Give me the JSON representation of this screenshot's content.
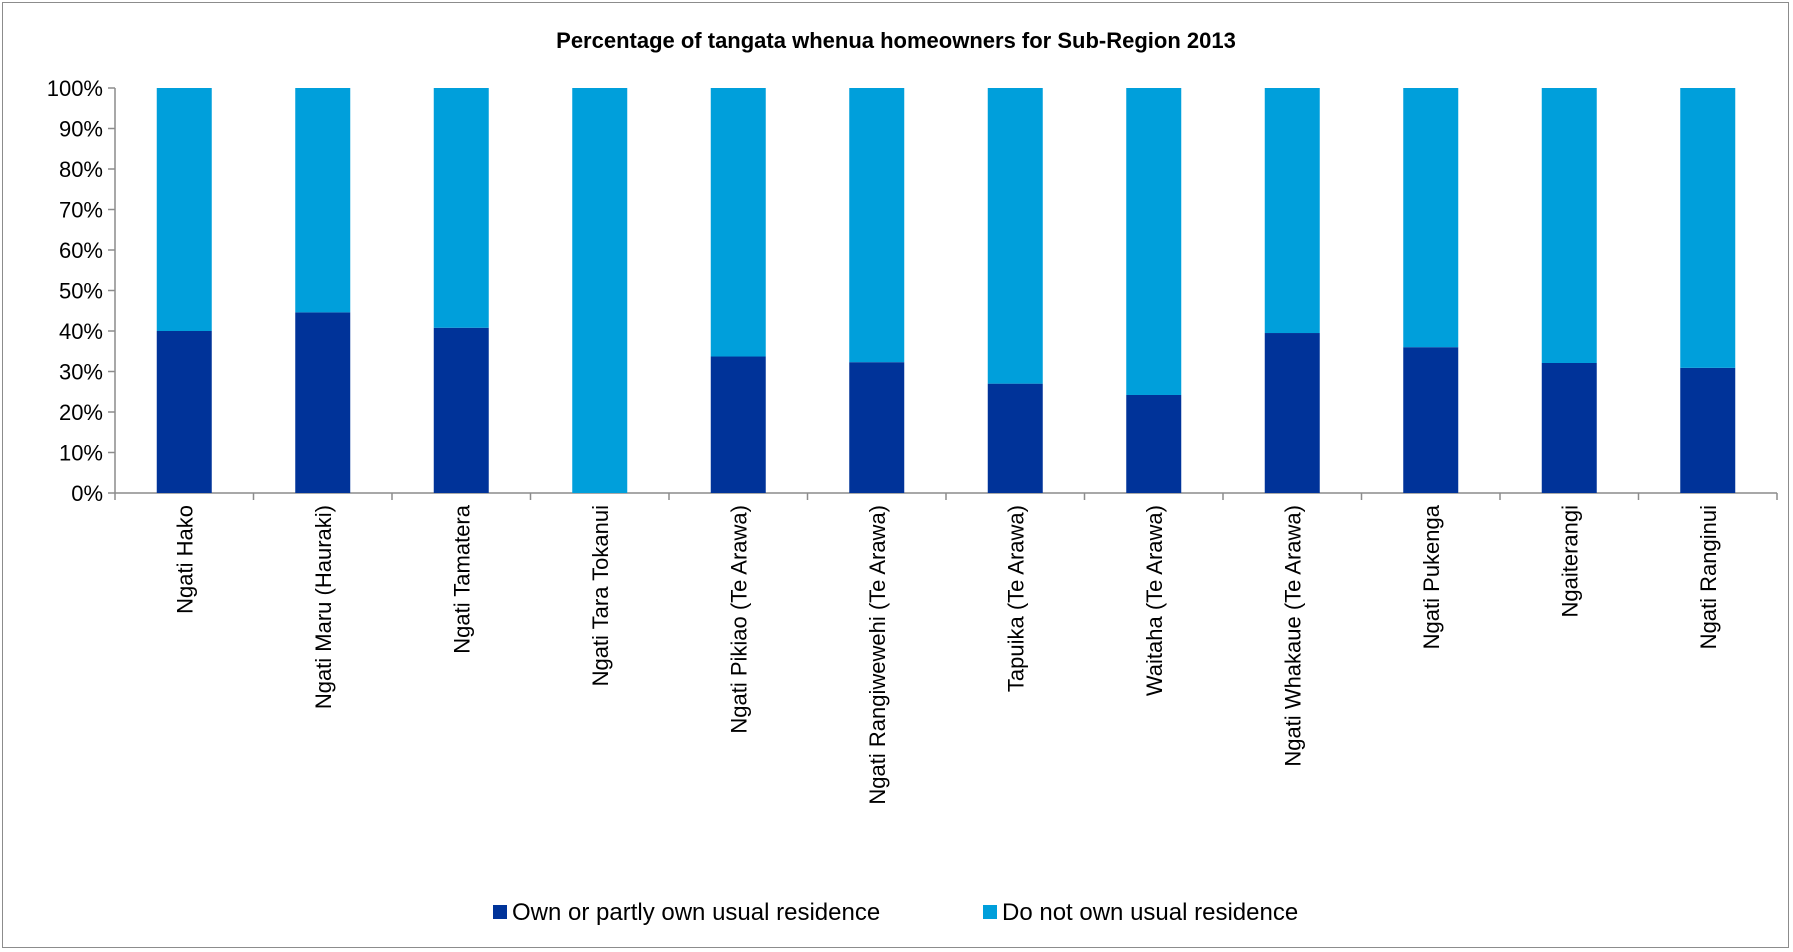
{
  "chart_data": {
    "type": "bar",
    "stacked": true,
    "title": "Percentage of tangata whenua homeowners for Sub-Region 2013",
    "xlabel": "",
    "ylabel": "",
    "ylim": [
      0,
      100
    ],
    "yticks": [
      "0%",
      "10%",
      "20%",
      "30%",
      "40%",
      "50%",
      "60%",
      "70%",
      "80%",
      "90%",
      "100%"
    ],
    "grid": false,
    "legend_position": "bottom",
    "categories": [
      "Ngati Hako",
      "Ngati Maru (Hauraki)",
      "Ngati Tamatera",
      "Ngati Tara Tokanui",
      "Ngati Pikiao (Te Arawa)",
      "Ngati Rangiwewehi (Te Arawa)",
      "Tapuika (Te Arawa)",
      "Waitaha (Te Arawa)",
      "Ngati Whakaue (Te Arawa)",
      "Ngati Pukenga",
      "Ngaiterangi",
      "Ngati Ranginui"
    ],
    "series": [
      {
        "name": "Own or partly own usual residence",
        "color": "#003399",
        "values": [
          40,
          44.6,
          40.8,
          0,
          33.7,
          32.3,
          27,
          24.2,
          39.5,
          36,
          32.1,
          30.9
        ]
      },
      {
        "name": "Do not own usual residence",
        "color": "#009fdb",
        "values": [
          60,
          55.4,
          59.2,
          100,
          66.3,
          67.7,
          73,
          75.8,
          60.5,
          64,
          67.9,
          69.1
        ]
      }
    ]
  }
}
